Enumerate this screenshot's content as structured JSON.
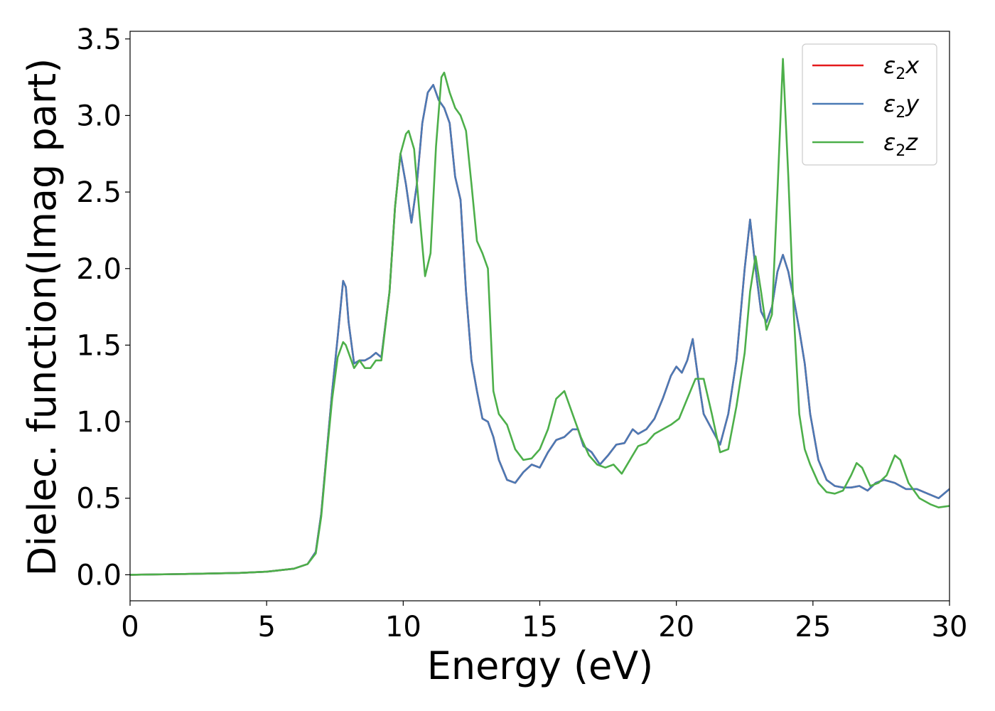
{
  "chart_data": {
    "type": "line",
    "title": "",
    "xlabel": "Energy (eV)",
    "ylabel": "Dielec. function(Imag part)",
    "xlim": [
      0,
      30
    ],
    "ylim": [
      -0.17,
      3.55
    ],
    "xticks": [
      0,
      5,
      10,
      15,
      20,
      25,
      30
    ],
    "yticks": [
      0.0,
      0.5,
      1.0,
      1.5,
      2.0,
      2.5,
      3.0,
      3.5
    ],
    "xtick_labels": [
      "0",
      "5",
      "10",
      "15",
      "20",
      "25",
      "30"
    ],
    "ytick_labels": [
      "0.0",
      "0.5",
      "1.0",
      "1.5",
      "2.0",
      "2.5",
      "3.0",
      "3.5"
    ],
    "grid": false,
    "legend_position": "top-right",
    "series": [
      {
        "name": "ε2x",
        "legend_base": "ε",
        "legend_sub": "2",
        "legend_suffix": "x",
        "color": "#e41a1c",
        "x": [
          0,
          2,
          4,
          5,
          6,
          6.5,
          6.8,
          7.0,
          7.2,
          7.4,
          7.6,
          7.8,
          7.9,
          8.0,
          8.2,
          8.4,
          8.6,
          8.8,
          9.0,
          9.2,
          9.5,
          9.7,
          9.9,
          10.1,
          10.3,
          10.5,
          10.7,
          10.9,
          11.1,
          11.3,
          11.5,
          11.7,
          11.9,
          12.1,
          12.3,
          12.5,
          12.7,
          12.9,
          13.1,
          13.3,
          13.5,
          13.8,
          14.1,
          14.4,
          14.7,
          15.0,
          15.3,
          15.6,
          15.9,
          16.2,
          16.4,
          16.6,
          16.9,
          17.2,
          17.5,
          17.8,
          18.1,
          18.4,
          18.6,
          18.9,
          19.2,
          19.5,
          19.8,
          20.0,
          20.2,
          20.4,
          20.6,
          20.8,
          21.0,
          21.3,
          21.6,
          21.9,
          22.2,
          22.5,
          22.7,
          22.9,
          23.1,
          23.3,
          23.5,
          23.7,
          23.9,
          24.1,
          24.3,
          24.5,
          24.7,
          24.9,
          25.2,
          25.5,
          25.8,
          26.1,
          26.4,
          26.7,
          27.0,
          27.3,
          27.6,
          28.0,
          28.4,
          28.8,
          29.2,
          29.6,
          30.0
        ],
        "y": [
          0,
          0.005,
          0.012,
          0.02,
          0.04,
          0.07,
          0.15,
          0.4,
          0.8,
          1.2,
          1.55,
          1.92,
          1.88,
          1.65,
          1.38,
          1.4,
          1.4,
          1.42,
          1.45,
          1.42,
          1.85,
          2.4,
          2.75,
          2.55,
          2.3,
          2.55,
          2.95,
          3.15,
          3.2,
          3.1,
          3.05,
          2.95,
          2.6,
          2.45,
          1.85,
          1.4,
          1.2,
          1.02,
          1.0,
          0.9,
          0.75,
          0.62,
          0.6,
          0.67,
          0.72,
          0.7,
          0.8,
          0.88,
          0.9,
          0.95,
          0.95,
          0.84,
          0.8,
          0.72,
          0.78,
          0.85,
          0.86,
          0.95,
          0.92,
          0.95,
          1.02,
          1.15,
          1.3,
          1.36,
          1.32,
          1.4,
          1.54,
          1.28,
          1.05,
          0.95,
          0.85,
          1.05,
          1.4,
          2.0,
          2.32,
          2.0,
          1.72,
          1.65,
          1.75,
          1.98,
          2.09,
          1.98,
          1.8,
          1.6,
          1.38,
          1.05,
          0.75,
          0.62,
          0.58,
          0.57,
          0.57,
          0.58,
          0.55,
          0.6,
          0.62,
          0.6,
          0.56,
          0.56,
          0.53,
          0.5,
          0.56
        ]
      },
      {
        "name": "ε2y",
        "legend_base": "ε",
        "legend_sub": "2",
        "legend_suffix": "y",
        "color": "#4a7ab5",
        "x": [
          0,
          2,
          4,
          5,
          6,
          6.5,
          6.8,
          7.0,
          7.2,
          7.4,
          7.6,
          7.8,
          7.9,
          8.0,
          8.2,
          8.4,
          8.6,
          8.8,
          9.0,
          9.2,
          9.5,
          9.7,
          9.9,
          10.1,
          10.3,
          10.5,
          10.7,
          10.9,
          11.1,
          11.3,
          11.5,
          11.7,
          11.9,
          12.1,
          12.3,
          12.5,
          12.7,
          12.9,
          13.1,
          13.3,
          13.5,
          13.8,
          14.1,
          14.4,
          14.7,
          15.0,
          15.3,
          15.6,
          15.9,
          16.2,
          16.4,
          16.6,
          16.9,
          17.2,
          17.5,
          17.8,
          18.1,
          18.4,
          18.6,
          18.9,
          19.2,
          19.5,
          19.8,
          20.0,
          20.2,
          20.4,
          20.6,
          20.8,
          21.0,
          21.3,
          21.6,
          21.9,
          22.2,
          22.5,
          22.7,
          22.9,
          23.1,
          23.3,
          23.5,
          23.7,
          23.9,
          24.1,
          24.3,
          24.5,
          24.7,
          24.9,
          25.2,
          25.5,
          25.8,
          26.1,
          26.4,
          26.7,
          27.0,
          27.3,
          27.6,
          28.0,
          28.4,
          28.8,
          29.2,
          29.6,
          30.0
        ],
        "y": [
          0,
          0.005,
          0.012,
          0.02,
          0.04,
          0.07,
          0.15,
          0.4,
          0.8,
          1.2,
          1.55,
          1.92,
          1.88,
          1.65,
          1.38,
          1.4,
          1.4,
          1.42,
          1.45,
          1.42,
          1.85,
          2.4,
          2.75,
          2.55,
          2.3,
          2.55,
          2.95,
          3.15,
          3.2,
          3.1,
          3.05,
          2.95,
          2.6,
          2.45,
          1.85,
          1.4,
          1.2,
          1.02,
          1.0,
          0.9,
          0.75,
          0.62,
          0.6,
          0.67,
          0.72,
          0.7,
          0.8,
          0.88,
          0.9,
          0.95,
          0.95,
          0.84,
          0.8,
          0.72,
          0.78,
          0.85,
          0.86,
          0.95,
          0.92,
          0.95,
          1.02,
          1.15,
          1.3,
          1.36,
          1.32,
          1.4,
          1.54,
          1.28,
          1.05,
          0.95,
          0.85,
          1.05,
          1.4,
          2.0,
          2.32,
          2.0,
          1.72,
          1.65,
          1.75,
          1.98,
          2.09,
          1.98,
          1.8,
          1.6,
          1.38,
          1.05,
          0.75,
          0.62,
          0.58,
          0.57,
          0.57,
          0.58,
          0.55,
          0.6,
          0.62,
          0.6,
          0.56,
          0.56,
          0.53,
          0.5,
          0.56
        ]
      },
      {
        "name": "ε2z",
        "legend_base": "ε",
        "legend_sub": "2",
        "legend_suffix": "z",
        "color": "#4daf4a",
        "x": [
          0,
          2,
          4,
          5,
          6,
          6.5,
          6.8,
          7.0,
          7.2,
          7.4,
          7.6,
          7.8,
          7.9,
          8.0,
          8.2,
          8.4,
          8.6,
          8.8,
          9.0,
          9.2,
          9.5,
          9.7,
          9.9,
          10.1,
          10.2,
          10.4,
          10.6,
          10.8,
          11.0,
          11.2,
          11.4,
          11.5,
          11.7,
          11.9,
          12.1,
          12.3,
          12.5,
          12.7,
          12.9,
          13.1,
          13.3,
          13.5,
          13.8,
          14.1,
          14.4,
          14.7,
          15.0,
          15.3,
          15.6,
          15.9,
          16.2,
          16.5,
          16.8,
          17.1,
          17.4,
          17.7,
          18.0,
          18.3,
          18.6,
          18.9,
          19.2,
          19.5,
          19.8,
          20.1,
          20.4,
          20.7,
          21.0,
          21.3,
          21.6,
          21.9,
          22.2,
          22.5,
          22.7,
          22.9,
          23.1,
          23.3,
          23.5,
          23.7,
          23.9,
          24.1,
          24.3,
          24.5,
          24.7,
          24.9,
          25.2,
          25.5,
          25.8,
          26.1,
          26.4,
          26.6,
          26.8,
          27.1,
          27.4,
          27.7,
          28.0,
          28.2,
          28.5,
          28.9,
          29.3,
          29.6,
          30.0
        ],
        "y": [
          0,
          0.005,
          0.012,
          0.02,
          0.04,
          0.07,
          0.14,
          0.38,
          0.78,
          1.15,
          1.42,
          1.52,
          1.5,
          1.45,
          1.35,
          1.4,
          1.35,
          1.35,
          1.4,
          1.4,
          1.85,
          2.4,
          2.75,
          2.88,
          2.9,
          2.78,
          2.35,
          1.95,
          2.1,
          2.8,
          3.25,
          3.28,
          3.15,
          3.05,
          3.0,
          2.9,
          2.55,
          2.18,
          2.1,
          2.0,
          1.2,
          1.05,
          0.98,
          0.82,
          0.75,
          0.76,
          0.82,
          0.95,
          1.15,
          1.2,
          1.05,
          0.9,
          0.78,
          0.72,
          0.7,
          0.72,
          0.66,
          0.75,
          0.84,
          0.86,
          0.92,
          0.95,
          0.98,
          1.02,
          1.15,
          1.28,
          1.28,
          1.05,
          0.8,
          0.82,
          1.1,
          1.45,
          1.85,
          2.08,
          1.85,
          1.6,
          1.7,
          2.5,
          3.37,
          2.6,
          1.7,
          1.05,
          0.82,
          0.72,
          0.6,
          0.54,
          0.53,
          0.55,
          0.65,
          0.73,
          0.7,
          0.58,
          0.6,
          0.65,
          0.78,
          0.75,
          0.6,
          0.5,
          0.46,
          0.44,
          0.45
        ]
      }
    ]
  }
}
